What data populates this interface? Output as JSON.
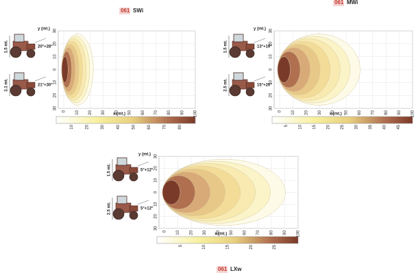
{
  "panels": [
    {
      "code": "061",
      "name": "SWi",
      "y_label": "y (mt.)",
      "x_label": "x (mt.)",
      "yticks": [
        "30",
        "20",
        "10",
        "0",
        "10",
        "20",
        "30"
      ],
      "xticks": [
        "0",
        "10",
        "20",
        "30",
        "40",
        "50",
        "60",
        "70",
        "80",
        "90",
        "100"
      ],
      "colorbar": [
        "10",
        "20",
        "30",
        "40",
        "50",
        "60",
        "70",
        "80"
      ],
      "tractors": [
        {
          "height": "1.5 mt.",
          "angle": "20°+28°"
        },
        {
          "height": "2.1 mt.",
          "angle": "21°+30°"
        }
      ]
    },
    {
      "code": "061",
      "name": "MWi",
      "y_label": "y (mt.)",
      "x_label": "x (mt.)",
      "yticks": [
        "30",
        "20",
        "10",
        "0",
        "10",
        "20",
        "30"
      ],
      "xticks": [
        "0",
        "10",
        "20",
        "30",
        "40",
        "50",
        "60",
        "70",
        "80",
        "90",
        "100"
      ],
      "colorbar": [
        "5",
        "10",
        "15",
        "20",
        "25",
        "30",
        "35",
        "40",
        "45"
      ],
      "tractors": [
        {
          "height": "1.5 mt.",
          "angle": "13°+19°"
        },
        {
          "height": "2.5 mt.",
          "angle": "15°+20°"
        }
      ]
    },
    {
      "code": "061",
      "name": "LXw",
      "y_label": "y (mt.)",
      "x_label": "x (mt.)",
      "yticks": [
        "30",
        "20",
        "10",
        "0",
        "10",
        "20",
        "30"
      ],
      "xticks": [
        "0",
        "10",
        "20",
        "30",
        "40",
        "50",
        "60",
        "70",
        "80",
        "90",
        "100"
      ],
      "colorbar": [
        "5",
        "10",
        "15",
        "20",
        "25"
      ],
      "tractors": [
        {
          "height": "1.5 mt.",
          "angle": "5°+12°"
        },
        {
          "height": "2.5 mt.",
          "angle": "5°+12°"
        }
      ]
    }
  ]
}
